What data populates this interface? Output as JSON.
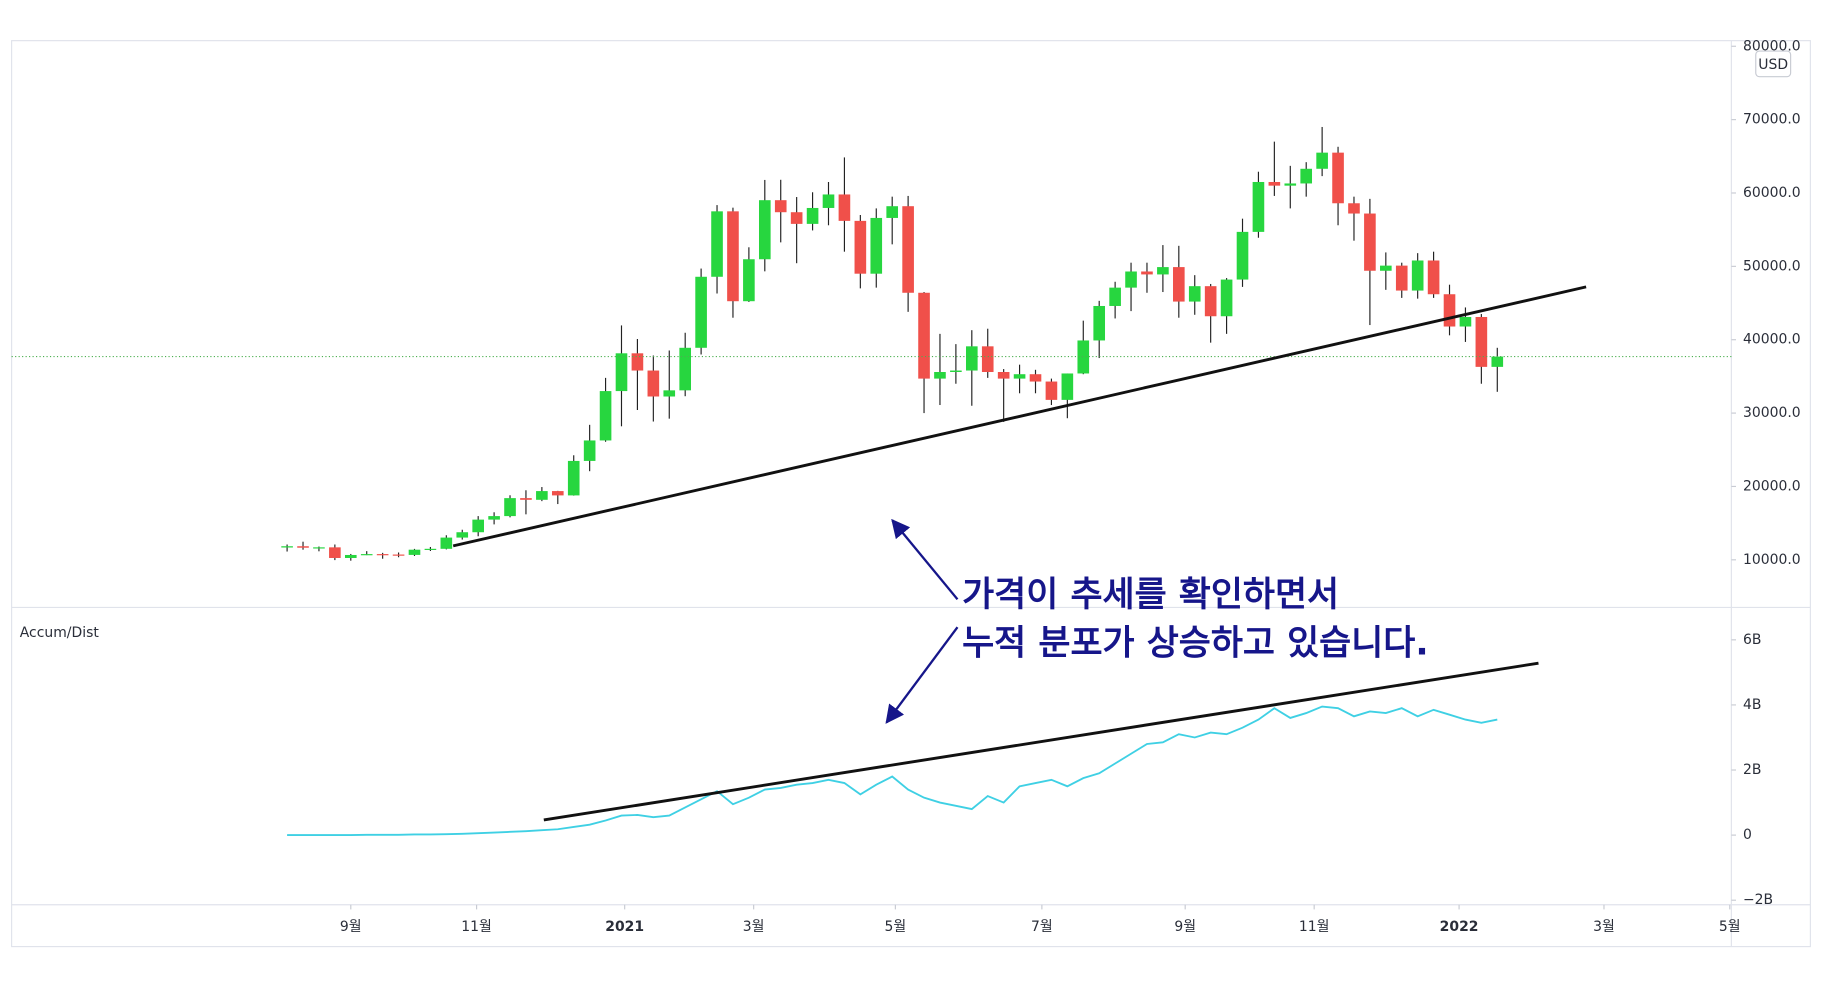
{
  "chart_data": [
    {
      "type": "candlestick",
      "y_unit": "USD",
      "categories": [
        null,
        null,
        null,
        null,
        null,
        null,
        null,
        null,
        null,
        null,
        null,
        null,
        null,
        null,
        null,
        null,
        null,
        null,
        null,
        null,
        null,
        null,
        null,
        null,
        null,
        null,
        null,
        null,
        null,
        null,
        null,
        null,
        null,
        null,
        null,
        null,
        null,
        null,
        null,
        null,
        null,
        null,
        null,
        null,
        null,
        null,
        null,
        null,
        null,
        null,
        null,
        null,
        null,
        null,
        null,
        null,
        null,
        null,
        null,
        null,
        null,
        null,
        null,
        null,
        null,
        null,
        null,
        null,
        null,
        null,
        null,
        null,
        null,
        null,
        null,
        null,
        null
      ],
      "open": [
        11680,
        11850,
        11650,
        11700,
        10250,
        10660,
        10780,
        10720,
        10670,
        11380,
        11500,
        13030,
        13760,
        15480,
        15960,
        18410,
        18180,
        19370,
        18780,
        23480,
        26270,
        33000,
        38150,
        35800,
        32260,
        33100,
        38900,
        48580,
        57500,
        45250,
        50970,
        59020,
        57380,
        55790,
        57960,
        59800,
        56200,
        49000,
        56600,
        58200,
        46400,
        34700,
        35600,
        35800,
        39100,
        35600,
        34700,
        35300,
        34300,
        31800,
        35400,
        39900,
        44600,
        47100,
        49300,
        48900,
        49900,
        45200,
        47300,
        43200,
        48200,
        54700,
        61500,
        61000,
        61300,
        63300,
        65500,
        58600,
        57200,
        49400,
        50100,
        46700,
        50800,
        46200,
        41800,
        43100,
        36300
      ],
      "high": [
        12090,
        12470,
        11810,
        12090,
        10800,
        11180,
        10950,
        11000,
        11490,
        11750,
        13350,
        14100,
        15960,
        16480,
        18800,
        19480,
        19920,
        19400,
        24250,
        28400,
        34800,
        41950,
        40100,
        37850,
        38530,
        40950,
        49700,
        58350,
        58000,
        52600,
        61780,
        61800,
        59450,
        60100,
        61500,
        64850,
        57000,
        57900,
        59500,
        59600,
        46500,
        40800,
        39400,
        41300,
        41500,
        36000,
        36600,
        35900,
        34700,
        35400,
        42600,
        45300,
        47900,
        50500,
        50500,
        52900,
        52800,
        48800,
        47600,
        48400,
        56500,
        62900,
        67000,
        63700,
        64200,
        69000,
        66300,
        59500,
        59200,
        51900,
        50500,
        51800,
        52000,
        47500,
        44400,
        43500,
        38900
      ],
      "low": [
        11130,
        11380,
        11160,
        9960,
        9880,
        10640,
        10150,
        10350,
        10520,
        11200,
        11420,
        12760,
        13210,
        14830,
        15790,
        16200,
        18000,
        17600,
        18750,
        22080,
        26090,
        28200,
        30420,
        28850,
        29240,
        32300,
        37990,
        46300,
        43000,
        45150,
        49320,
        53270,
        50430,
        54900,
        55600,
        52000,
        47000,
        47100,
        53000,
        43800,
        30000,
        31100,
        34000,
        31000,
        34800,
        28800,
        32700,
        32700,
        31100,
        29300,
        35300,
        37500,
        42900,
        43900,
        46400,
        46500,
        43000,
        43400,
        39600,
        40800,
        47200,
        53900,
        59600,
        57900,
        59500,
        62300,
        55600,
        53500,
        42000,
        46800,
        45700,
        45600,
        45700,
        40600,
        39700,
        34000,
        32900
      ],
      "close": [
        11850,
        11650,
        11700,
        10250,
        10660,
        10780,
        10720,
        10670,
        11380,
        11500,
        13030,
        13760,
        15480,
        15960,
        18410,
        18180,
        19370,
        18780,
        23480,
        26270,
        33000,
        38150,
        35800,
        32260,
        33100,
        38900,
        48580,
        57500,
        45250,
        50970,
        59020,
        57380,
        55790,
        57960,
        59800,
        56200,
        49000,
        56600,
        58200,
        46400,
        34700,
        35600,
        35800,
        39100,
        35600,
        34700,
        35300,
        34300,
        31800,
        35400,
        39900,
        44600,
        47100,
        49300,
        48900,
        49900,
        45200,
        47300,
        43200,
        48200,
        54700,
        61500,
        61000,
        61300,
        63300,
        65500,
        58600,
        57200,
        49400,
        50100,
        46700,
        50800,
        46200,
        41800,
        43100,
        36300,
        37700
      ],
      "up_color": "#27d63f",
      "down_color": "#f0504a",
      "xlim": [
        -17.3,
        90.7
      ],
      "ylim": [
        3510,
        80765
      ],
      "yticks": [
        {
          "value": 10000,
          "label": "10000.0"
        },
        {
          "value": 20000,
          "label": "20000.0"
        },
        {
          "value": 30000,
          "label": "30000.0"
        },
        {
          "value": 40000,
          "label": "40000.0"
        },
        {
          "value": 50000,
          "label": "50000.0"
        },
        {
          "value": 60000,
          "label": "60000.0"
        },
        {
          "value": 70000,
          "label": "70000.0"
        },
        {
          "value": 80000,
          "label": "80000.0"
        }
      ]
    },
    {
      "type": "line",
      "title": "Accum/Dist",
      "categories": [
        null,
        null,
        null,
        null,
        null,
        null,
        null,
        null,
        null,
        null,
        null,
        null,
        null,
        null,
        null,
        null,
        null,
        null,
        null,
        null,
        null,
        null,
        null,
        null,
        null,
        null,
        null,
        null,
        null,
        null,
        null,
        null,
        null,
        null,
        null,
        null,
        null,
        null,
        null,
        null,
        null,
        null,
        null,
        null,
        null,
        null,
        null,
        null,
        null,
        null,
        null,
        null,
        null,
        null,
        null,
        null,
        null,
        null,
        null,
        null,
        null,
        null,
        null,
        null,
        null,
        null,
        null,
        null,
        null,
        null,
        null,
        null,
        null,
        null,
        null,
        null,
        null
      ],
      "values": [
        0,
        0,
        0,
        0,
        0,
        0.01,
        0.01,
        0.01,
        0.02,
        0.02,
        0.03,
        0.04,
        0.06,
        0.08,
        0.1,
        0.12,
        0.15,
        0.18,
        0.25,
        0.32,
        0.45,
        0.6,
        0.62,
        0.55,
        0.6,
        0.85,
        1.1,
        1.35,
        0.95,
        1.15,
        1.4,
        1.45,
        1.55,
        1.6,
        1.7,
        1.6,
        1.25,
        1.55,
        1.8,
        1.4,
        1.15,
        1.0,
        0.9,
        0.8,
        1.2,
        1.0,
        1.5,
        1.6,
        1.7,
        1.5,
        1.75,
        1.9,
        2.2,
        2.5,
        2.8,
        2.85,
        3.1,
        3.0,
        3.15,
        3.1,
        3.3,
        3.55,
        3.9,
        3.6,
        3.75,
        3.95,
        3.9,
        3.65,
        3.8,
        3.75,
        3.9,
        3.65,
        3.85,
        3.7,
        3.55,
        3.45,
        3.55
      ],
      "color": "#3fd0e4",
      "xlim": [
        -17.3,
        90.7
      ],
      "ylim": [
        -2.14,
        6.96
      ],
      "yticks": [
        {
          "value": -2,
          "label": "−2B"
        },
        0,
        {
          "value": 2,
          "label": "2B"
        },
        {
          "value": 4,
          "label": "4B"
        },
        {
          "value": 6,
          "label": "6B"
        }
      ],
      "xticks": [
        {
          "value": 4.0,
          "label": "9월"
        },
        {
          "value": 11.9,
          "label": "11월"
        },
        {
          "value": 21.2,
          "label": "2021"
        },
        {
          "value": 29.3,
          "label": "3월"
        },
        {
          "value": 38.2,
          "label": "5월"
        },
        {
          "value": 47.4,
          "label": "7월"
        },
        {
          "value": 56.4,
          "label": "9월"
        },
        {
          "value": 64.5,
          "label": "11월"
        },
        {
          "value": 73.6,
          "label": "2022"
        },
        {
          "value": 82.7,
          "label": "3월"
        },
        {
          "value": 90.6,
          "label": "5월"
        }
      ]
    }
  ],
  "annotation": [
    "가격이 추세를 확인하면서",
    "누적 분포가 상승하고 있습니다."
  ]
}
